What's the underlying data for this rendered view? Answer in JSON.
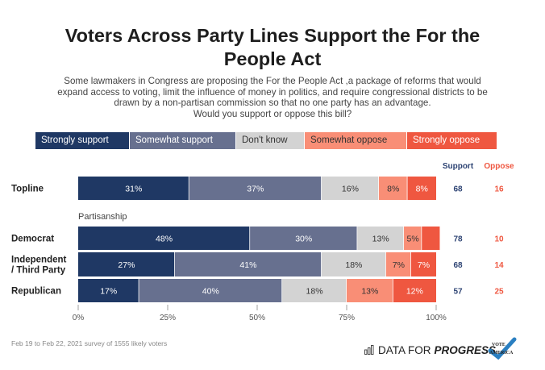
{
  "chart_data": {
    "type": "bar",
    "orientation": "horizontal",
    "stacked": true,
    "title": "Voters Across Party Lines Support the For the People Act",
    "title_lines": [
      "Voters Across Party Lines Support the For the",
      "People Act"
    ],
    "subtitle_lines": [
      "Some lawmakers in Congress are proposing the For the People Act ,a package of reforms that would",
      "expand access to voting, limit the influence of money in politics, and require congressional districts to be",
      "drawn by a non-partisan commission so that no one party has an advantage.",
      "Would you support or oppose this bill?"
    ],
    "legend_placement": "top",
    "series": [
      {
        "name": "Strongly support",
        "color": "#1f3864",
        "text_color": "#ffffff",
        "values": [
          31,
          48,
          27,
          17
        ]
      },
      {
        "name": "Somewhat support",
        "color": "#67708f",
        "text_color": "#ffffff",
        "values": [
          37,
          30,
          41,
          40
        ]
      },
      {
        "name": "Don't know",
        "color": "#d3d3d3",
        "text_color": "#333333",
        "values": [
          16,
          13,
          18,
          18
        ]
      },
      {
        "name": "Somewhat oppose",
        "color": "#f98e76",
        "text_color": "#333333",
        "values": [
          8,
          5,
          7,
          13
        ]
      },
      {
        "name": "Strongly oppose",
        "color": "#ef5740",
        "text_color": "#ffffff",
        "values": [
          8,
          5,
          7,
          12
        ]
      }
    ],
    "value_labels": [
      [
        "31%",
        "37%",
        "16%",
        "8%",
        "8%"
      ],
      [
        "48%",
        "30%",
        "13%",
        "5%",
        ""
      ],
      [
        "27%",
        "41%",
        "18%",
        "7%",
        "7%"
      ],
      [
        "17%",
        "40%",
        "18%",
        "13%",
        "12%"
      ]
    ],
    "categories": [
      "Topline",
      "Democrat",
      "Independent / Third Party",
      "Republican"
    ],
    "category_lines": [
      [
        "Topline"
      ],
      [
        "Democrat"
      ],
      [
        "Independent",
        "/ Third Party"
      ],
      [
        "Republican"
      ]
    ],
    "group_label": "Partisanship",
    "group_starts_at_index": 1,
    "totals_headers": {
      "support": "Support",
      "oppose": "Oppose"
    },
    "totals": {
      "support": [
        68,
        78,
        68,
        57
      ],
      "oppose": [
        16,
        10,
        14,
        25
      ]
    },
    "support_color": "#2d4373",
    "oppose_color": "#ef5740",
    "xlim": [
      0,
      100
    ],
    "xticks": [
      0,
      25,
      50,
      75,
      100
    ],
    "xtick_labels": [
      "0%",
      "25%",
      "50%",
      "75%",
      "100%"
    ],
    "xlabel": "",
    "ylabel": "",
    "grid": false
  },
  "footer": {
    "source": "Feb 19 to Feb 22, 2021 survey of 1555 likely voters",
    "brand_light": "DATA FOR",
    "brand_bold": "PROGRESS",
    "brand_icon": "bar-chart-icon",
    "partner_logo": "vote-america-logo"
  }
}
